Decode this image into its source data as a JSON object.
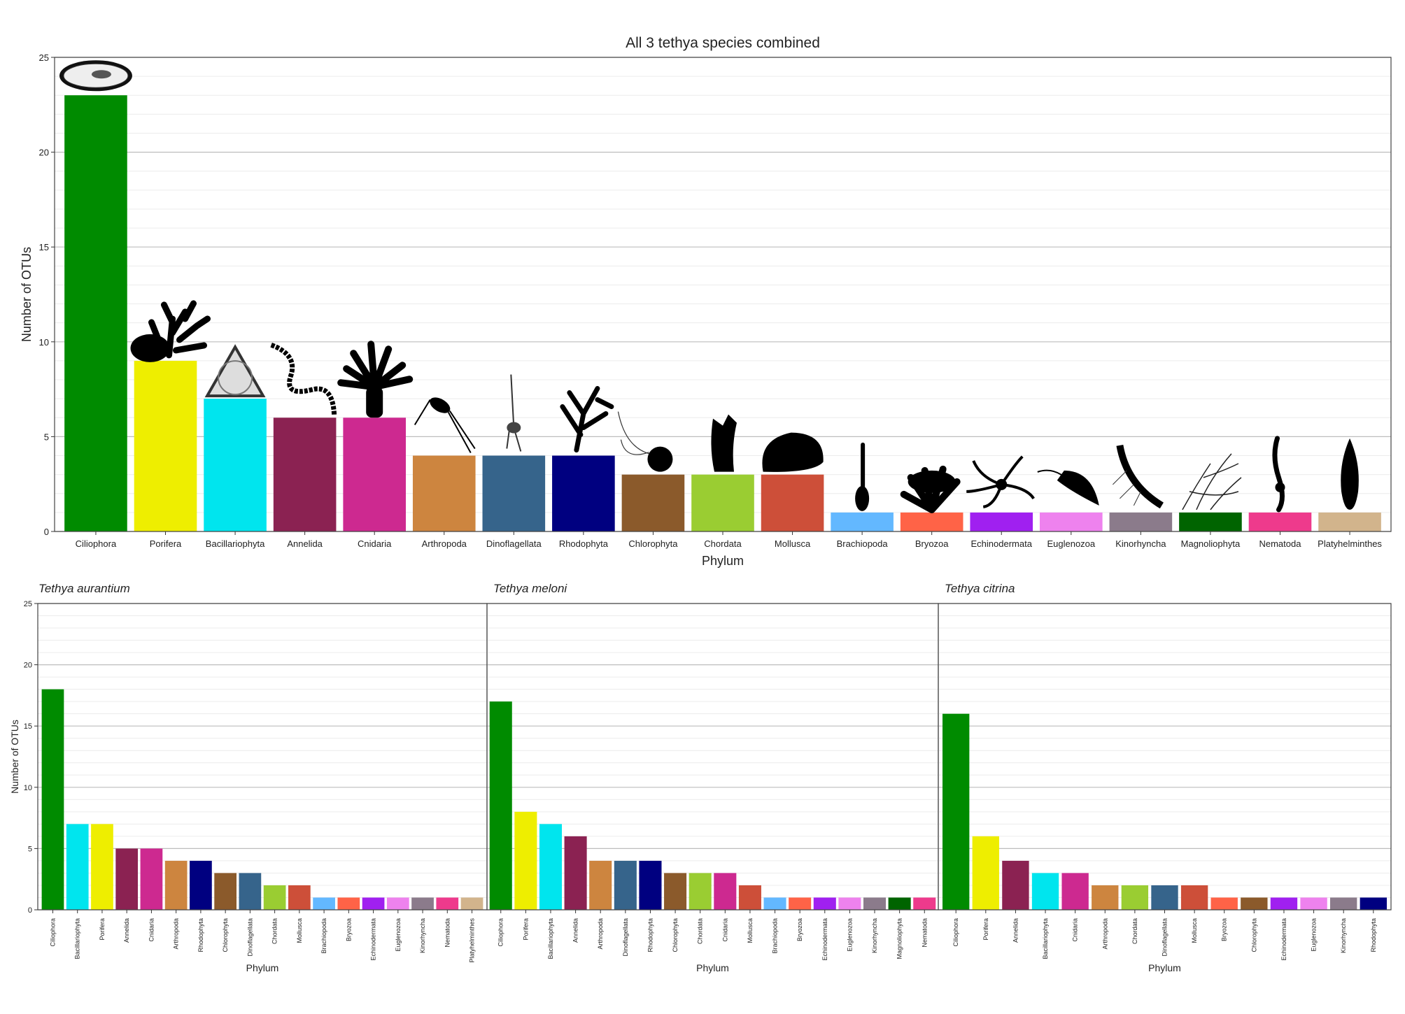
{
  "colors": {
    "Ciliophora": "#008B00",
    "Porifera": "#EEEE00",
    "Bacillariophyta": "#00E5EE",
    "Annelida": "#8B2252",
    "Cnidaria": "#CD2990",
    "Arthropoda": "#CD853F",
    "Dinoflagellata": "#36648B",
    "Rhodophyta": "#000080",
    "Chlorophyta": "#8B5A2B",
    "Chordata": "#9ACD32",
    "Mollusca": "#CD4F39",
    "Brachiopoda": "#63B8FF",
    "Bryozoa": "#FF6347",
    "Echinodermata": "#A020F0",
    "Euglenozoa": "#EE82EE",
    "Kinorhyncha": "#8B7B8B",
    "Magnoliophyta": "#006400",
    "Nematoda": "#EE3A8C",
    "Platyhelminthes": "#D2B48C"
  },
  "chart_data": [
    {
      "id": "combined",
      "type": "bar",
      "title": "All 3 tethya species combined",
      "xlabel": "Phylum",
      "ylabel": "Number of OTUs",
      "ylim": [
        0,
        25
      ],
      "yticks": [
        0,
        5,
        10,
        15,
        20,
        25
      ],
      "grid": true,
      "legend": "none",
      "categories": [
        "Ciliophora",
        "Porifera",
        "Bacillariophyta",
        "Annelida",
        "Cnidaria",
        "Arthropoda",
        "Dinoflagellata",
        "Rhodophyta",
        "Chlorophyta",
        "Chordata",
        "Mollusca",
        "Brachiopoda",
        "Bryozoa",
        "Echinodermata",
        "Euglenozoa",
        "Kinorhyncha",
        "Magnoliophyta",
        "Nematoda",
        "Platyhelminthes"
      ],
      "values": [
        23,
        9,
        7,
        6,
        6,
        4,
        4,
        4,
        3,
        3,
        3,
        1,
        1,
        1,
        1,
        1,
        1,
        1,
        1
      ],
      "silhouettes": true
    },
    {
      "id": "aurantium",
      "type": "bar",
      "title": "Tethya aurantium",
      "xlabel": "Phylum",
      "ylabel": "Number of OTUs",
      "ylim": [
        0,
        25
      ],
      "yticks": [
        0,
        5,
        10,
        15,
        20,
        25
      ],
      "grid": true,
      "legend": "none",
      "categories": [
        "Ciliophora",
        "Bacillariophyta",
        "Porifera",
        "Annelida",
        "Cnidaria",
        "Arthropoda",
        "Rhodophyta",
        "Chlorophyta",
        "Dinoflagellata",
        "Chordata",
        "Mollusca",
        "Brachiopoda",
        "Bryozoa",
        "Echinodermata",
        "Euglenozoa",
        "Kinorhyncha",
        "Nematoda",
        "Platyhelminthes"
      ],
      "values": [
        18,
        7,
        7,
        5,
        5,
        4,
        4,
        3,
        3,
        2,
        2,
        1,
        1,
        1,
        1,
        1,
        1,
        1
      ]
    },
    {
      "id": "meloni",
      "type": "bar",
      "title": "Tethya meloni",
      "xlabel": "Phylum",
      "ylabel": "",
      "ylim": [
        0,
        25
      ],
      "yticks": [
        0,
        5,
        10,
        15,
        20,
        25
      ],
      "grid": true,
      "legend": "none",
      "categories": [
        "Ciliophora",
        "Porifera",
        "Bacillariophyta",
        "Annelida",
        "Arthropoda",
        "Dinoflagellata",
        "Rhodophyta",
        "Chlorophyta",
        "Chordata",
        "Cnidaria",
        "Mollusca",
        "Brachiopoda",
        "Bryozoa",
        "Echinodermata",
        "Euglenozoa",
        "Kinorhyncha",
        "Magnoliophyta",
        "Nematoda"
      ],
      "values": [
        17,
        8,
        7,
        6,
        4,
        4,
        4,
        3,
        3,
        3,
        2,
        1,
        1,
        1,
        1,
        1,
        1,
        1
      ]
    },
    {
      "id": "citrina",
      "type": "bar",
      "title": "Tethya citrina",
      "xlabel": "Phylum",
      "ylabel": "",
      "ylim": [
        0,
        25
      ],
      "yticks": [
        0,
        5,
        10,
        15,
        20,
        25
      ],
      "grid": true,
      "legend": "none",
      "categories": [
        "Ciliophora",
        "Porifera",
        "Annelida",
        "Bacillariophyta",
        "Cnidaria",
        "Arthropoda",
        "Chordata",
        "Dinoflagellata",
        "Mollusca",
        "Bryozoa",
        "Chlorophyta",
        "Echinodermata",
        "Euglenozoa",
        "Kinorhyncha",
        "Rhodophyta"
      ],
      "values": [
        16,
        6,
        4,
        3,
        3,
        2,
        2,
        2,
        2,
        1,
        1,
        1,
        1,
        1,
        1
      ]
    }
  ]
}
